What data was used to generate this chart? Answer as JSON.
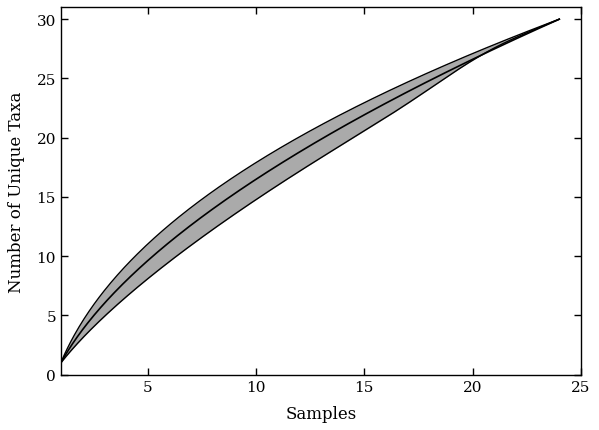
{
  "x_start": 1,
  "x_end": 24,
  "n_points": 300,
  "band_color": "#aaaaaa",
  "line_color": "#000000",
  "line_width": 1.2,
  "band_edge_width": 1.0,
  "xlabel": "Samples",
  "ylabel": "Number of Unique Taxa",
  "xlim": [
    1,
    25
  ],
  "ylim": [
    0,
    31
  ],
  "xticks": [
    5,
    10,
    15,
    20,
    25
  ],
  "yticks": [
    0,
    5,
    10,
    15,
    20,
    25,
    30
  ],
  "background_color": "#ffffff",
  "fig_width": 5.99,
  "fig_height": 4.31,
  "dpi": 100,
  "upper_k": 0.12,
  "lower_k": 0.065,
  "mean_k": 0.09
}
